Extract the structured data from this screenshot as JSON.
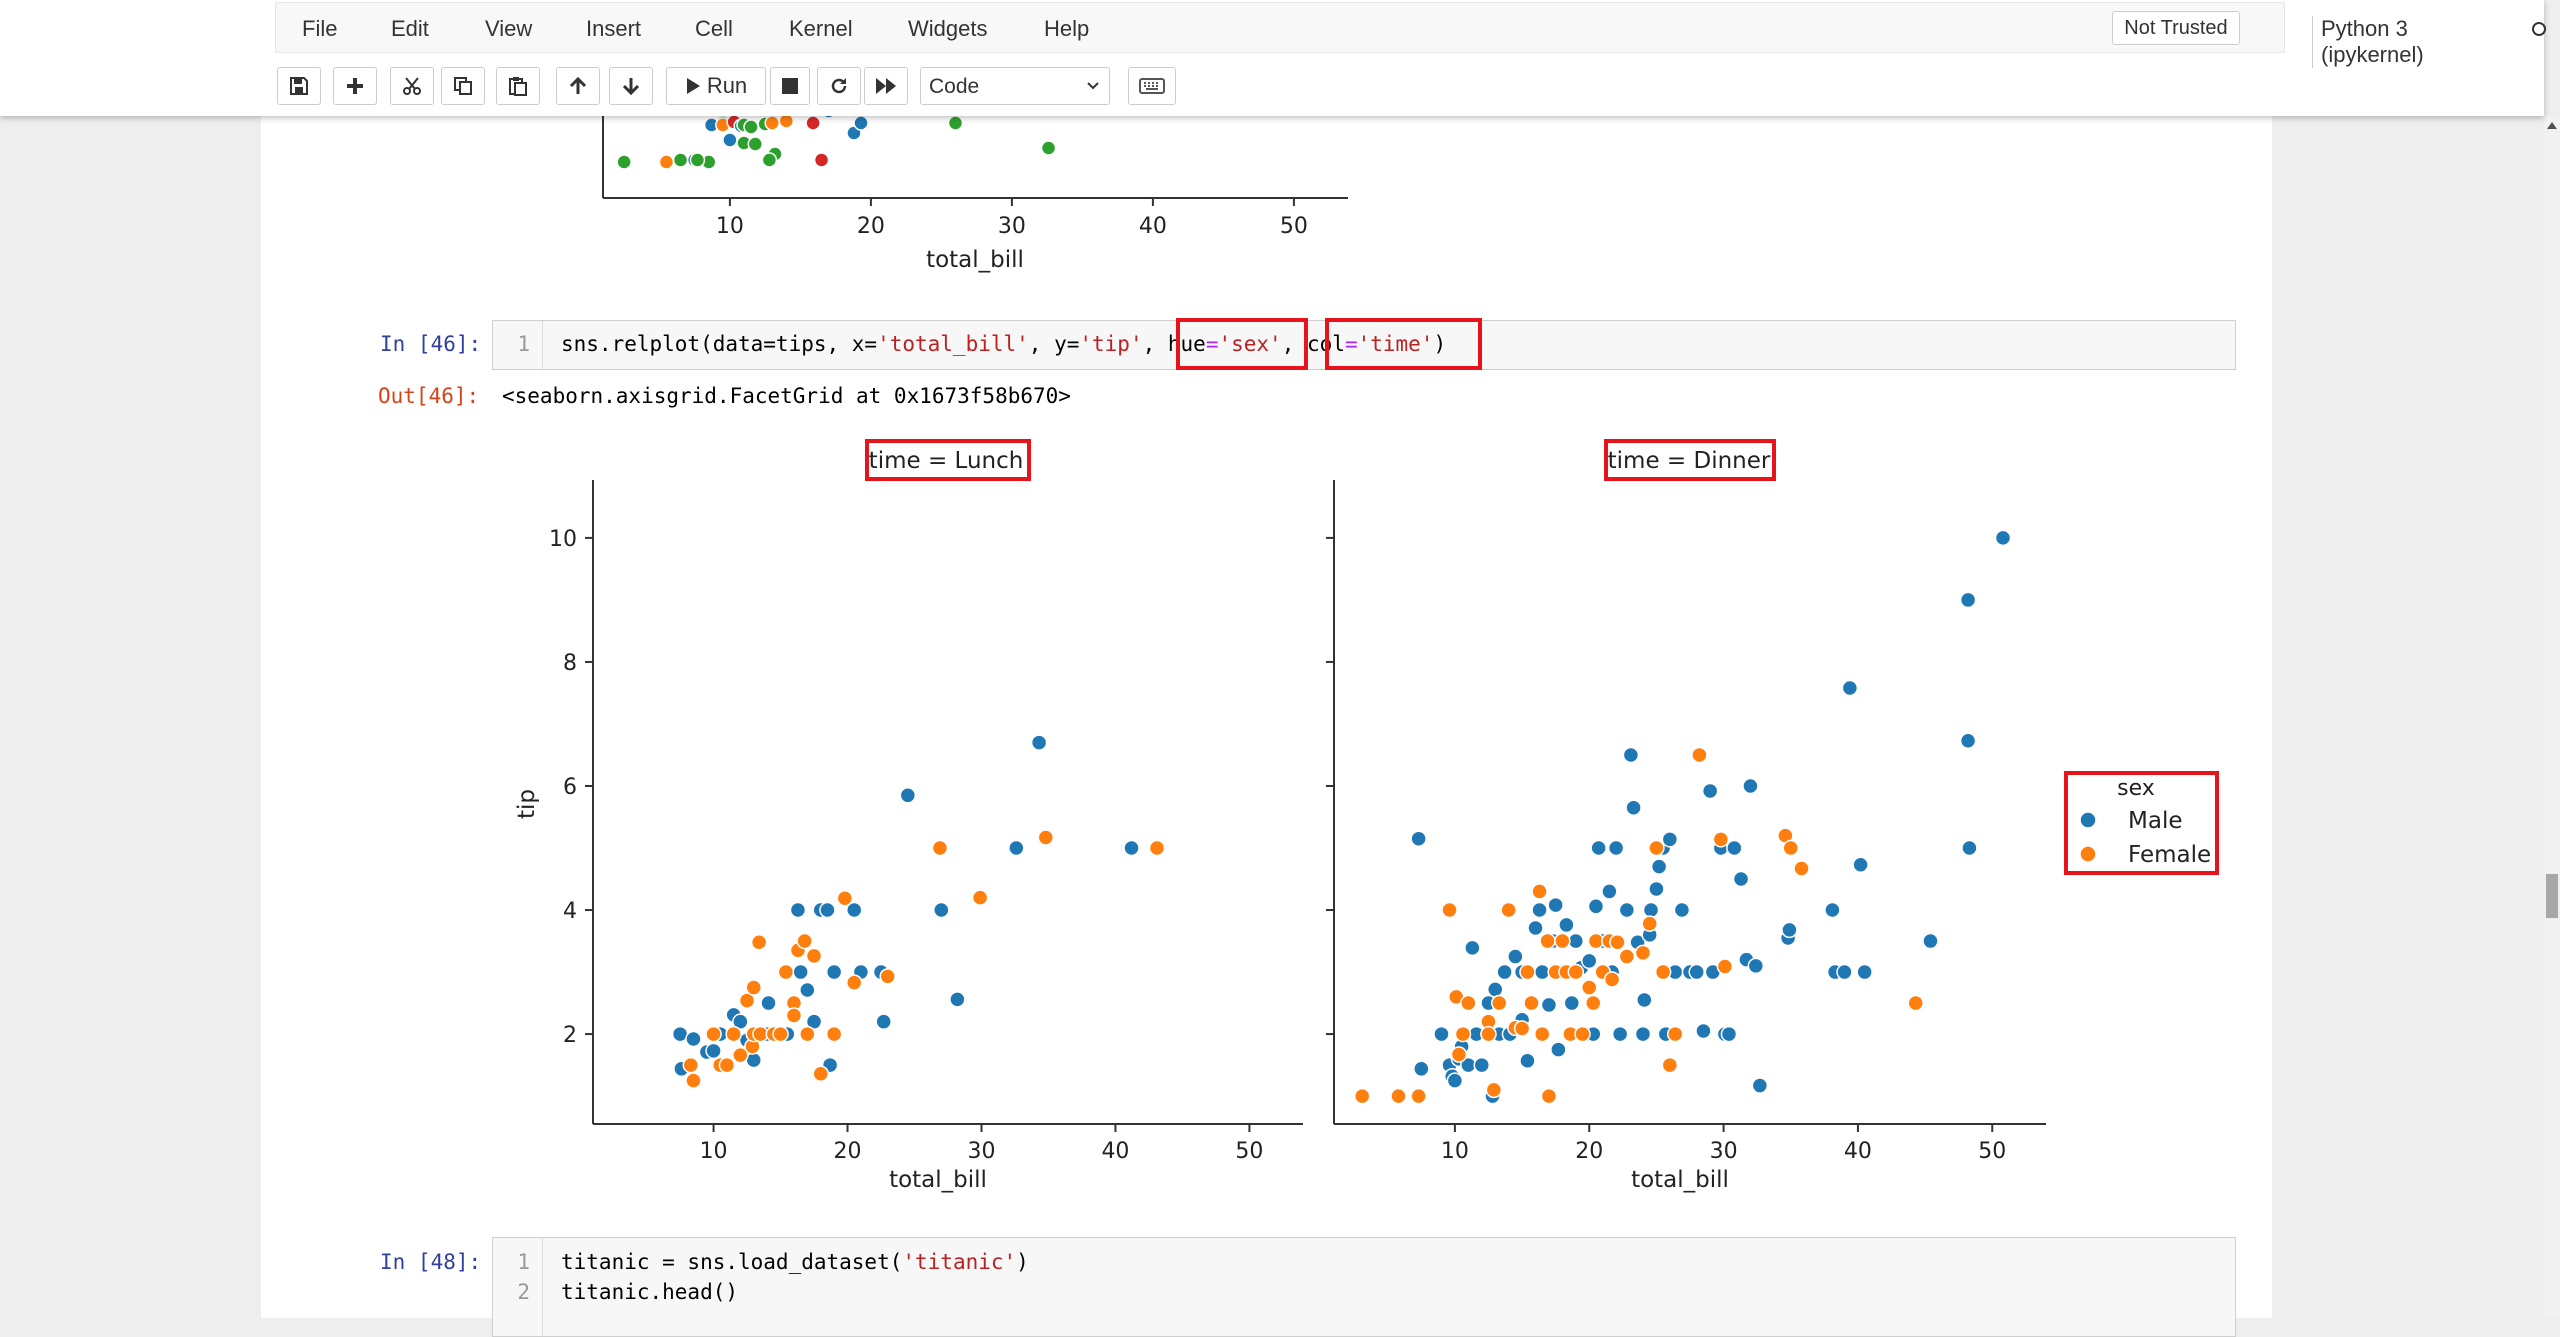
{
  "menu": {
    "items": [
      "File",
      "Edit",
      "View",
      "Insert",
      "Cell",
      "Kernel",
      "Widgets",
      "Help"
    ],
    "trust_status": "Not Trusted",
    "kernel": "Python 3 (ipykernel)"
  },
  "toolbar": {
    "run_label": "Run",
    "cell_type": "Code",
    "icons": [
      "save-icon",
      "plus-icon",
      "cut-icon",
      "copy-icon",
      "paste-icon",
      "arrow-up-icon",
      "arrow-down-icon",
      "run-icon",
      "stop-icon",
      "restart-icon",
      "fast-forward-icon",
      "keyboard-icon"
    ]
  },
  "top_plot": {
    "xlabel": "total_bill",
    "xticks": [
      "10",
      "20",
      "30",
      "40",
      "50"
    ]
  },
  "cell46": {
    "in_prompt": "In [46]:",
    "line_number": "1",
    "code_prefix": "sns.relplot(data=tips, x=",
    "x_value": "'total_bill'",
    "code_mid1": ", y=",
    "y_value": "'tip'",
    "code_mid2": ", ",
    "hue_key": "hue",
    "hue_value": "'sex'",
    "code_mid3": ", ",
    "col_key": "col",
    "col_value": "'time'",
    "code_suffix": ")",
    "out_prompt": "Out[46]:",
    "output_text": "<seaborn.axisgrid.FacetGrid at 0x1673f58b670>"
  },
  "cell48": {
    "in_prompt": "In [48]:",
    "line_numbers": [
      "1",
      "2"
    ],
    "line1_prefix": "titanic = sns.load_dataset(",
    "line1_arg": "'titanic'",
    "line1_suffix": ")",
    "line2": "titanic.head()"
  },
  "colors": {
    "male": "#1f77b4",
    "female": "#ff7f0e",
    "green": "#2ca02c",
    "red": "#d62728",
    "highlight": "#e8141c"
  },
  "chart_data": {
    "type": "scatter",
    "facet_titles": [
      "time = Lunch",
      "time = Dinner"
    ],
    "xlabel": "total_bill",
    "ylabel": "tip",
    "xticks": [
      10,
      20,
      30,
      40,
      50
    ],
    "yticks": [
      2,
      4,
      6,
      8,
      10
    ],
    "xlim": [
      1,
      54
    ],
    "ylim": [
      0.55,
      10.45
    ],
    "legend": {
      "title": "sex",
      "entries": [
        "Male",
        "Female"
      ],
      "placement": "right"
    },
    "facets": [
      {
        "title": "time = Lunch",
        "series": [
          {
            "name": "Male",
            "color": "#1f77b4",
            "points": [
              [
                7.5,
                2.0
              ],
              [
                7.6,
                1.44
              ],
              [
                8.5,
                1.92
              ],
              [
                9.5,
                1.71
              ],
              [
                10.0,
                1.73
              ],
              [
                10.5,
                2.0
              ],
              [
                11.5,
                2.31
              ],
              [
                12.0,
                2.2
              ],
              [
                12.5,
                1.9
              ],
              [
                13.0,
                1.58
              ],
              [
                13.3,
                2.0
              ],
              [
                14.0,
                2.0
              ],
              [
                14.1,
                2.5
              ],
              [
                15.0,
                2.0
              ],
              [
                15.5,
                2.0
              ],
              [
                16.3,
                4.0
              ],
              [
                16.5,
                3.0
              ],
              [
                17.0,
                2.71
              ],
              [
                17.5,
                2.2
              ],
              [
                18.0,
                4.0
              ],
              [
                18.5,
                4.0
              ],
              [
                18.7,
                1.5
              ],
              [
                19.0,
                3.0
              ],
              [
                20.5,
                4.0
              ],
              [
                21.0,
                3.0
              ],
              [
                22.5,
                3.0
              ],
              [
                22.7,
                2.2
              ],
              [
                24.5,
                5.85
              ],
              [
                27.0,
                4.0
              ],
              [
                28.2,
                2.56
              ],
              [
                32.6,
                5.0
              ],
              [
                34.3,
                6.7
              ],
              [
                41.2,
                5.0
              ]
            ]
          },
          {
            "name": "Female",
            "color": "#ff7f0e",
            "points": [
              [
                8.3,
                1.5
              ],
              [
                8.5,
                1.25
              ],
              [
                10.0,
                2.0
              ],
              [
                10.5,
                1.5
              ],
              [
                11.0,
                1.5
              ],
              [
                11.5,
                2.0
              ],
              [
                12.0,
                1.66
              ],
              [
                12.5,
                2.54
              ],
              [
                12.9,
                1.8
              ],
              [
                13.0,
                2.0
              ],
              [
                13.4,
                3.48
              ],
              [
                13.5,
                2.0
              ],
              [
                13.0,
                2.75
              ],
              [
                14.5,
                2.0
              ],
              [
                15.0,
                2.0
              ],
              [
                15.4,
                3.0
              ],
              [
                16.0,
                2.5
              ],
              [
                16.3,
                3.35
              ],
              [
                16.0,
                2.3
              ],
              [
                16.8,
                3.5
              ],
              [
                17.5,
                3.26
              ],
              [
                17.0,
                2.0
              ],
              [
                18.0,
                1.36
              ],
              [
                19.0,
                2.0
              ],
              [
                19.8,
                4.19
              ],
              [
                20.5,
                2.83
              ],
              [
                23.0,
                2.93
              ],
              [
                26.9,
                5.0
              ],
              [
                29.9,
                4.2
              ],
              [
                34.8,
                5.17
              ],
              [
                43.1,
                5.0
              ]
            ]
          }
        ]
      },
      {
        "title": "time = Dinner",
        "series": [
          {
            "name": "Male",
            "color": "#1f77b4",
            "points": [
              [
                7.3,
                5.15
              ],
              [
                7.5,
                1.44
              ],
              [
                9.0,
                2.0
              ],
              [
                9.6,
                1.5
              ],
              [
                9.8,
                1.32
              ],
              [
                10.0,
                1.25
              ],
              [
                10.3,
                1.6
              ],
              [
                10.5,
                1.8
              ],
              [
                11.0,
                1.5
              ],
              [
                11.3,
                3.39
              ],
              [
                11.6,
                2.0
              ],
              [
                12.0,
                1.5
              ],
              [
                12.5,
                2.0
              ],
              [
                12.5,
                2.5
              ],
              [
                12.8,
                1.0
              ],
              [
                13.0,
                2.72
              ],
              [
                13.3,
                2.0
              ],
              [
                13.7,
                3.0
              ],
              [
                14.1,
                2.0
              ],
              [
                14.5,
                3.25
              ],
              [
                15.0,
                3.0
              ],
              [
                15.0,
                2.23
              ],
              [
                15.4,
                1.57
              ],
              [
                15.8,
                2.5
              ],
              [
                16.0,
                3.71
              ],
              [
                16.3,
                4.0
              ],
              [
                16.5,
                3.0
              ],
              [
                16.6,
                2.0
              ],
              [
                17.0,
                2.47
              ],
              [
                17.3,
                3.5
              ],
              [
                17.5,
                4.08
              ],
              [
                17.7,
                1.75
              ],
              [
                18.0,
                3.0
              ],
              [
                18.3,
                3.76
              ],
              [
                18.7,
                2.5
              ],
              [
                19.0,
                3.5
              ],
              [
                19.4,
                3.07
              ],
              [
                19.8,
                2.0
              ],
              [
                20.0,
                3.18
              ],
              [
                20.3,
                2.0
              ],
              [
                20.5,
                4.06
              ],
              [
                20.7,
                5.0
              ],
              [
                21.0,
                3.5
              ],
              [
                21.5,
                4.3
              ],
              [
                21.7,
                3.0
              ],
              [
                22.0,
                5.0
              ],
              [
                22.3,
                2.0
              ],
              [
                22.8,
                4.0
              ],
              [
                23.1,
                6.5
              ],
              [
                23.3,
                5.65
              ],
              [
                23.6,
                3.48
              ],
              [
                24.0,
                2.0
              ],
              [
                24.1,
                2.55
              ],
              [
                24.5,
                3.6
              ],
              [
                24.6,
                4.0
              ],
              [
                25.0,
                4.34
              ],
              [
                25.2,
                4.7
              ],
              [
                25.5,
                5.0
              ],
              [
                25.7,
                2.0
              ],
              [
                26.0,
                5.14
              ],
              [
                26.4,
                3.0
              ],
              [
                26.9,
                4.0
              ],
              [
                27.5,
                3.0
              ],
              [
                28.0,
                3.0
              ],
              [
                28.5,
                2.05
              ],
              [
                29.0,
                5.92
              ],
              [
                29.2,
                3.0
              ],
              [
                29.8,
                5.0
              ],
              [
                30.1,
                2.0
              ],
              [
                30.4,
                2.0
              ],
              [
                30.8,
                5.0
              ],
              [
                31.3,
                4.5
              ],
              [
                31.7,
                3.2
              ],
              [
                32.0,
                6.0
              ],
              [
                32.4,
                3.1
              ],
              [
                32.7,
                1.17
              ],
              [
                34.8,
                3.55
              ],
              [
                34.9,
                3.68
              ],
              [
                38.1,
                4.0
              ],
              [
                38.3,
                3.0
              ],
              [
                39.0,
                3.0
              ],
              [
                39.4,
                7.58
              ],
              [
                40.2,
                4.73
              ],
              [
                40.5,
                3.0
              ],
              [
                45.4,
                3.5
              ],
              [
                48.2,
                9.0
              ],
              [
                48.2,
                6.73
              ],
              [
                48.3,
                5.0
              ],
              [
                50.8,
                10.0
              ]
            ]
          },
          {
            "name": "Female",
            "color": "#ff7f0e",
            "points": [
              [
                3.1,
                1.0
              ],
              [
                5.8,
                1.0
              ],
              [
                7.3,
                1.0
              ],
              [
                9.6,
                4.0
              ],
              [
                10.1,
                2.6
              ],
              [
                10.3,
                1.67
              ],
              [
                10.6,
                2.0
              ],
              [
                11.0,
                2.5
              ],
              [
                12.5,
                2.2
              ],
              [
                12.5,
                2.0
              ],
              [
                12.9,
                1.1
              ],
              [
                13.3,
                2.5
              ],
              [
                14.0,
                4.0
              ],
              [
                14.5,
                2.1
              ],
              [
                15.0,
                2.09
              ],
              [
                15.4,
                3.0
              ],
              [
                15.7,
                2.5
              ],
              [
                16.3,
                4.3
              ],
              [
                16.5,
                2.0
              ],
              [
                16.9,
                3.5
              ],
              [
                17.0,
                1.0
              ],
              [
                17.5,
                3.0
              ],
              [
                18.0,
                3.5
              ],
              [
                18.3,
                3.0
              ],
              [
                18.6,
                2.0
              ],
              [
                19.0,
                3.0
              ],
              [
                19.5,
                2.0
              ],
              [
                20.0,
                2.75
              ],
              [
                20.3,
                2.5
              ],
              [
                20.5,
                3.5
              ],
              [
                21.0,
                3.0
              ],
              [
                21.5,
                3.5
              ],
              [
                21.7,
                2.88
              ],
              [
                22.1,
                3.48
              ],
              [
                22.8,
                3.25
              ],
              [
                24.0,
                3.31
              ],
              [
                24.5,
                3.78
              ],
              [
                25.0,
                5.0
              ],
              [
                25.5,
                3.0
              ],
              [
                26.0,
                1.5
              ],
              [
                26.4,
                2.0
              ],
              [
                28.2,
                6.5
              ],
              [
                29.8,
                5.14
              ],
              [
                30.1,
                3.09
              ],
              [
                34.6,
                5.2
              ],
              [
                35.0,
                5.0
              ],
              [
                35.8,
                4.67
              ],
              [
                44.3,
                2.5
              ]
            ]
          }
        ]
      }
    ]
  }
}
